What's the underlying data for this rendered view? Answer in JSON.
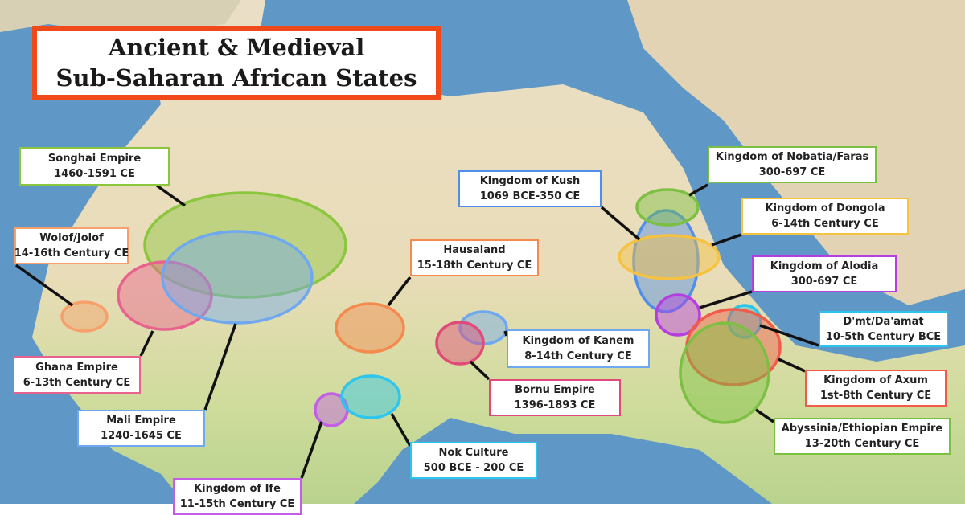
{
  "title": {
    "line1": "Ancient & Medieval",
    "line2": "Sub-Saharan African States",
    "border_color": "#f04a1a"
  },
  "states": [
    {
      "id": "songhai",
      "name": "Songhai Empire",
      "period": "1460-1591 CE",
      "color": "#8cc63f"
    },
    {
      "id": "wolof",
      "name": "Wolof/Jolof",
      "period": "14-16th Century CE",
      "color": "#f7a06b"
    },
    {
      "id": "ghana",
      "name": "Ghana Empire",
      "period": "6-13th Century CE",
      "color": "#e8628f"
    },
    {
      "id": "mali",
      "name": "Mali Empire",
      "period": "1240-1645 CE",
      "color": "#6fa8ef"
    },
    {
      "id": "ife",
      "name": "Kingdom of Ife",
      "period": "11-15th Century CE",
      "color": "#c35ee6"
    },
    {
      "id": "hausa",
      "name": "Hausaland",
      "period": "15-18th Century CE",
      "color": "#f58a4e"
    },
    {
      "id": "nok",
      "name": "Nok Culture",
      "period": "500 BCE - 200 CE",
      "color": "#2cc6ee"
    },
    {
      "id": "kush",
      "name": "Kingdom of Kush",
      "period": "1069 BCE-350 CE",
      "color": "#4f8fe8"
    },
    {
      "id": "kanem",
      "name": "Kingdom of Kanem",
      "period": "8-14th Century CE",
      "color": "#6fa8ef"
    },
    {
      "id": "bornu",
      "name": "Bornu Empire",
      "period": "1396-1893 CE",
      "color": "#e04a78"
    },
    {
      "id": "nobatia",
      "name": "Kingdom of Nobatia/Faras",
      "period": "300-697 CE",
      "color": "#7cc043"
    },
    {
      "id": "dongola",
      "name": "Kingdom of Dongola",
      "period": "6-14th Century  CE",
      "color": "#f5c242"
    },
    {
      "id": "alodia",
      "name": "Kingdom of Alodia",
      "period": "300-697 CE",
      "color": "#b53ee0"
    },
    {
      "id": "dmt",
      "name": "D'mt/Da'amat",
      "period": "10-5th Century BCE",
      "color": "#29c5ec"
    },
    {
      "id": "axum",
      "name": "Kingdom of Axum",
      "period": "1st-8th Century CE",
      "color": "#f25a4a"
    },
    {
      "id": "abyssinia",
      "name": "Abyssinia/Ethiopian Empire",
      "period": "13-20th Century CE",
      "color": "#7cc043"
    }
  ]
}
